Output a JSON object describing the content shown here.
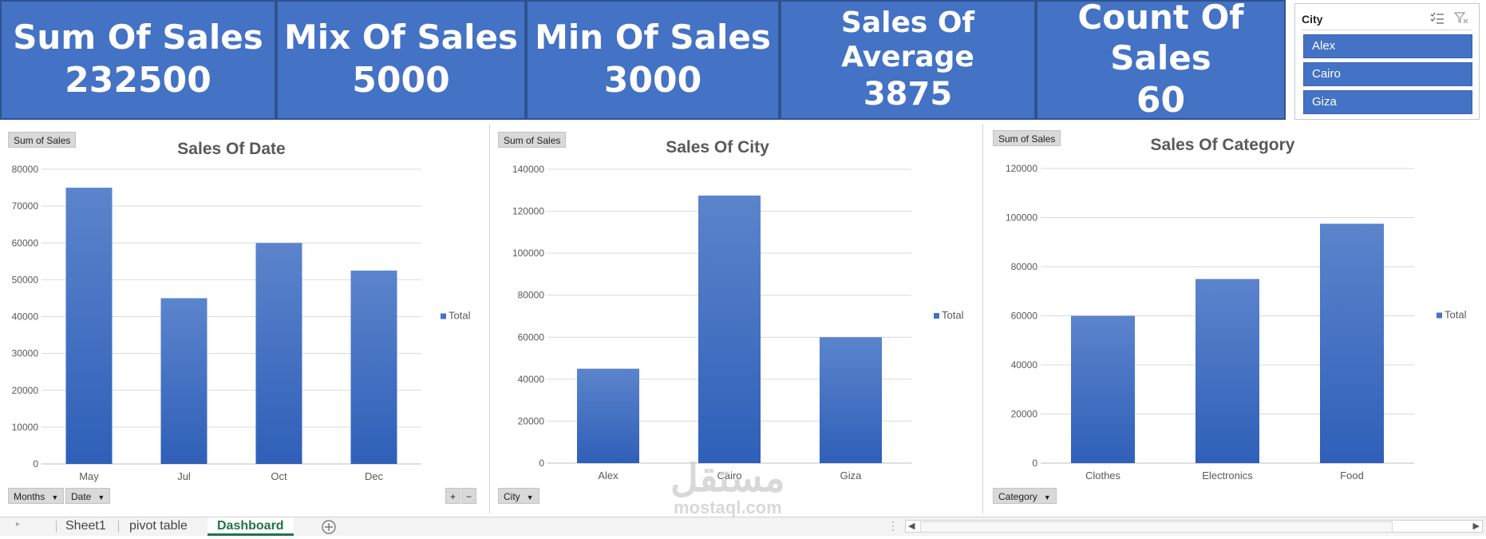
{
  "kpis": [
    {
      "title": "Sum Of Sales",
      "value": "232500"
    },
    {
      "title": "Mix Of Sales",
      "value": "5000"
    },
    {
      "title": "Min Of Sales",
      "value": "3000"
    },
    {
      "title": "Sales Of Average",
      "value": "3875"
    },
    {
      "title": "Count Of Sales",
      "value": "60"
    }
  ],
  "slicer": {
    "title": "City",
    "items": [
      "Alex",
      "Cairo",
      "Giza"
    ]
  },
  "colors": {
    "accent": "#4472c4",
    "kpi_border": "#2f528f",
    "tab_active": "#217346"
  },
  "charts": [
    {
      "value_button": "Sum of Sales",
      "axis_buttons": [
        "Months",
        "Date"
      ],
      "expand_buttons": [
        "+",
        "−"
      ],
      "legend": "Total"
    },
    {
      "value_button": "Sum of Sales",
      "axis_buttons": [
        "City"
      ],
      "legend": "Total"
    },
    {
      "value_button": "Sum of Sales",
      "axis_buttons": [
        "Category"
      ],
      "legend": "Total"
    }
  ],
  "chart_data": [
    {
      "type": "bar",
      "title": "Sales Of Date",
      "categories": [
        "May",
        "Jul",
        "Oct",
        "Dec"
      ],
      "series": [
        {
          "name": "Total",
          "values": [
            75000,
            45000,
            60000,
            52500
          ]
        }
      ],
      "ylim": [
        0,
        80000
      ],
      "yticks": [
        0,
        10000,
        20000,
        30000,
        40000,
        50000,
        60000,
        70000,
        80000
      ],
      "grid": true,
      "legend_position": "right"
    },
    {
      "type": "bar",
      "title": "Sales Of City",
      "categories": [
        "Alex",
        "Cairo",
        "Giza"
      ],
      "series": [
        {
          "name": "Total",
          "values": [
            45000,
            127500,
            60000
          ]
        }
      ],
      "ylim": [
        0,
        140000
      ],
      "yticks": [
        0,
        20000,
        40000,
        60000,
        80000,
        100000,
        120000,
        140000
      ],
      "grid": true,
      "legend_position": "right"
    },
    {
      "type": "bar",
      "title": "Sales Of Category",
      "categories": [
        "Clothes",
        "Electronics",
        "Food"
      ],
      "series": [
        {
          "name": "Total",
          "values": [
            60000,
            75000,
            97500
          ]
        }
      ],
      "ylim": [
        0,
        120000
      ],
      "yticks": [
        0,
        20000,
        40000,
        60000,
        80000,
        100000,
        120000
      ],
      "grid": true,
      "legend_position": "right"
    }
  ],
  "sheet_tabs": [
    {
      "label": "Sheet1",
      "active": false
    },
    {
      "label": "pivot table",
      "active": false
    },
    {
      "label": "Dashboard",
      "active": true
    }
  ],
  "icons": {
    "add_sheet": "plus-circle-icon",
    "multi_select": "multi-select-icon",
    "clear_filter": "clear-filter-icon"
  },
  "watermark": {
    "arabic": "مستقل",
    "latin": "mostaql.com"
  }
}
